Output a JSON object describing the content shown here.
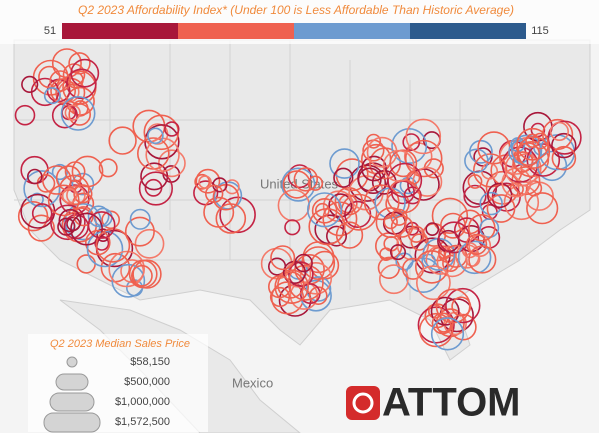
{
  "title": "Q2 2023 Affordability Index* (Under 100 is Less Affordable Than Historic Average)",
  "color_scale": {
    "min": 51,
    "max": 115
  },
  "map_labels": {
    "country": "United States",
    "neighbor": "Mexico"
  },
  "size_legend": {
    "title": "Q2 2023 Median Sales Price",
    "entries": [
      "$58,150",
      "$500,000",
      "$1,000,000",
      "$1,572,500"
    ]
  },
  "logo": "ATTOM"
}
